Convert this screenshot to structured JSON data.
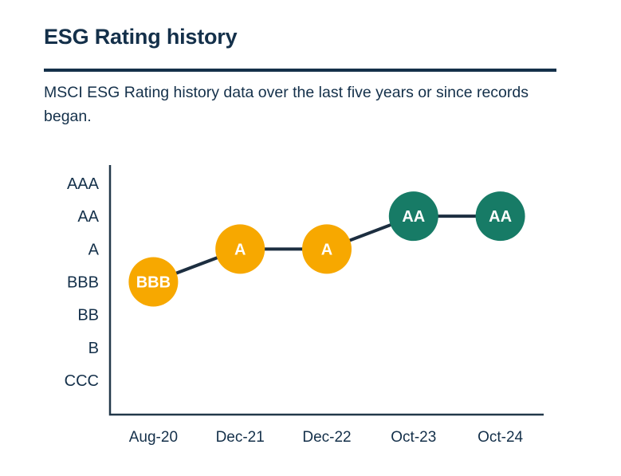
{
  "page": {
    "title": "ESG Rating history",
    "description": "MSCI ESG Rating history data over the last five years or since records began."
  },
  "colors": {
    "navy_text": "#14304a",
    "axis_color": "#22384a",
    "trend_line": "#1c2e40",
    "rating_yellow": "#f7a800",
    "rating_green": "#177b66",
    "point_label": "#ffffff",
    "background": "#ffffff"
  },
  "chart_data": {
    "type": "line",
    "title": "ESG Rating history",
    "subtitle": "MSCI ESG Rating history data over the last five years or since records began.",
    "categories": [
      "Aug-20",
      "Dec-21",
      "Dec-22",
      "Oct-23",
      "Oct-24"
    ],
    "values": [
      "BBB",
      "A",
      "A",
      "AA",
      "AA"
    ],
    "y_axis_labels": [
      "AAA",
      "AA",
      "A",
      "BBB",
      "BB",
      "B",
      "CCC"
    ],
    "y_axis_order": "best-on-top",
    "xlabel": "",
    "ylabel": "",
    "grid": "off",
    "legend": "none",
    "points": [
      {
        "date": "Aug-20",
        "rating": "BBB",
        "color": "#f7a800"
      },
      {
        "date": "Dec-21",
        "rating": "A",
        "color": "#f7a800"
      },
      {
        "date": "Dec-22",
        "rating": "A",
        "color": "#f7a800"
      },
      {
        "date": "Oct-23",
        "rating": "AA",
        "color": "#177b66"
      },
      {
        "date": "Oct-24",
        "rating": "AA",
        "color": "#177b66"
      }
    ]
  }
}
